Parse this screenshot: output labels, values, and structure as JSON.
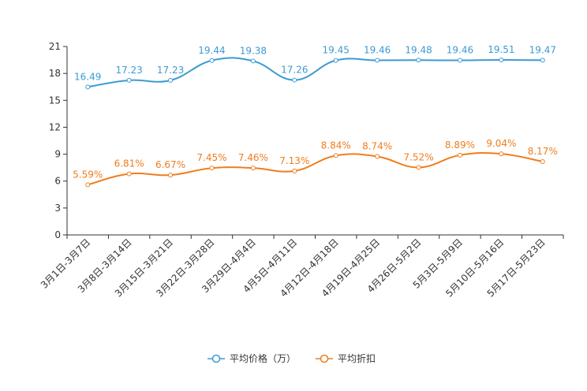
{
  "chart_data": {
    "type": "line",
    "categories": [
      "3月1日-3月7日",
      "3月8日-3月14日",
      "3月15日-3月21日",
      "3月22日-3月28日",
      "3月29日-4月4日",
      "4月5日-4月11日",
      "4月12日-4月18日",
      "4月19日-4月25日",
      "4月26日-5月2日",
      "5月3日-5月9日",
      "5月10日-5月16日",
      "5月17日-5月23日"
    ],
    "ylim": [
      0,
      21
    ],
    "yticks": [
      0,
      3,
      6,
      9,
      12,
      15,
      18,
      21
    ],
    "series": [
      {
        "name": "平均价格（万）",
        "color": "#3c9bd2",
        "values": [
          16.49,
          17.23,
          17.23,
          19.44,
          19.38,
          17.26,
          19.45,
          19.46,
          19.48,
          19.46,
          19.51,
          19.47
        ],
        "labels": [
          "16.49",
          "17.23",
          "17.23",
          "19.44",
          "19.38",
          "17.26",
          "19.45",
          "19.46",
          "19.48",
          "19.46",
          "19.51",
          "19.47"
        ]
      },
      {
        "name": "平均折扣",
        "color": "#f07d1e",
        "values": [
          5.59,
          6.81,
          6.67,
          7.45,
          7.46,
          7.13,
          8.84,
          8.74,
          7.52,
          8.89,
          9.04,
          8.17
        ],
        "labels": [
          "5.59%",
          "6.81%",
          "6.67%",
          "7.45%",
          "7.46%",
          "7.13%",
          "8.84%",
          "8.74%",
          "7.52%",
          "8.89%",
          "9.04%",
          "8.17%"
        ]
      }
    ],
    "legend_position": "bottom-center"
  }
}
